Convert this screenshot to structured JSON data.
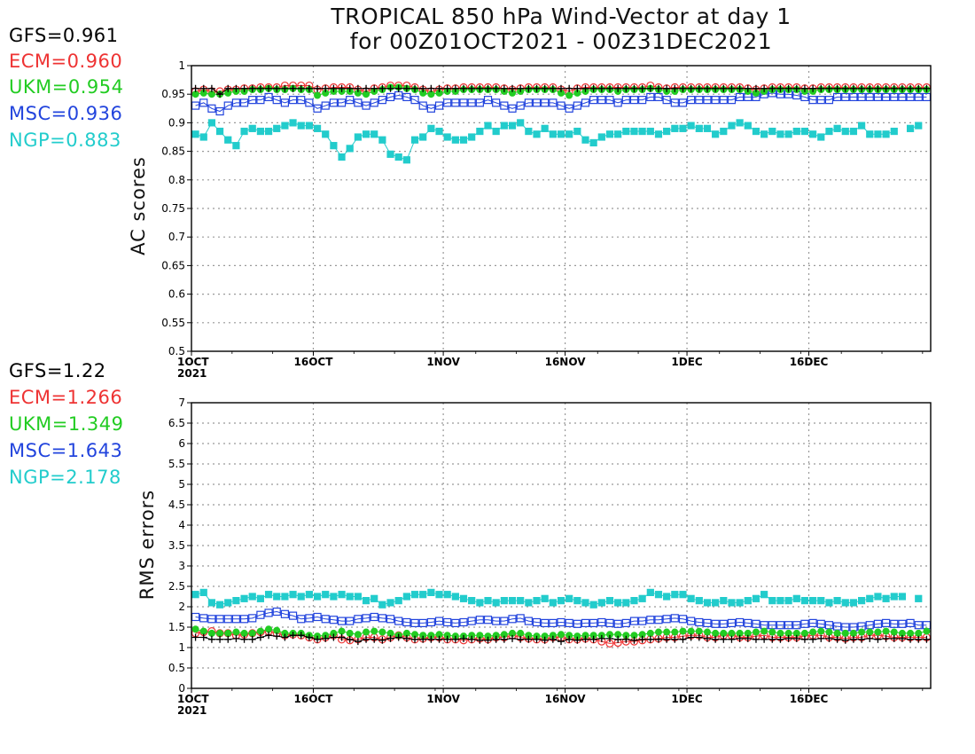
{
  "chart_data": [
    {
      "type": "line",
      "title": "TROPICAL 850 hPa Wind-Vector at day 1",
      "subtitle": "for 00Z01OCT2021 - 00Z31DEC2021",
      "ylabel": "AC scores",
      "ylim": [
        0.5,
        1.0
      ],
      "yticks": [
        "0.5",
        "0.55",
        "0.6",
        "0.65",
        "0.7",
        "0.75",
        "0.8",
        "0.85",
        "0.9",
        "0.95",
        "1"
      ],
      "xticks": [
        "1OCT",
        "16OCT",
        "1NOV",
        "16NOV",
        "1DEC",
        "16DEC"
      ],
      "xtick_year": "2021",
      "grid": true,
      "series": [
        {
          "name": "GFS",
          "summary": "GFS=0.961",
          "color": "#000000",
          "marker": "plus",
          "values": [
            0.96,
            0.96,
            0.96,
            0.95,
            0.96,
            0.96,
            0.96,
            0.96,
            0.96,
            0.96,
            0.96,
            0.96,
            0.96,
            0.96,
            0.96,
            0.96,
            0.96,
            0.96,
            0.96,
            0.96,
            0.96,
            0.96,
            0.96,
            0.96,
            0.96,
            0.96,
            0.96,
            0.96,
            0.96,
            0.96,
            0.96,
            0.96,
            0.96,
            0.96,
            0.96,
            0.96,
            0.96,
            0.96,
            0.96,
            0.96,
            0.96,
            0.96,
            0.96,
            0.96,
            0.96,
            0.96,
            0.96,
            0.96,
            0.96,
            0.96,
            0.96,
            0.96,
            0.96,
            0.96,
            0.96,
            0.96,
            0.96,
            0.96,
            0.96,
            0.96,
            0.96,
            0.96,
            0.96,
            0.96,
            0.96,
            0.96,
            0.96,
            0.96,
            0.96,
            0.96,
            0.96,
            0.96,
            0.96,
            0.96,
            0.96,
            0.96,
            0.96,
            0.96,
            0.96,
            0.96,
            0.96,
            0.96,
            0.96,
            0.96,
            0.96,
            0.96,
            0.96,
            0.96,
            0.96,
            0.96,
            0.96
          ]
        },
        {
          "name": "ECM",
          "summary": "ECM=0.960",
          "color": "#ee3333",
          "marker": "open-circle",
          "values": [
            0.955,
            0.958,
            0.955,
            0.955,
            0.958,
            0.958,
            0.96,
            0.96,
            0.962,
            0.962,
            0.962,
            0.965,
            0.965,
            0.965,
            0.965,
            0.958,
            0.96,
            0.962,
            0.962,
            0.962,
            0.958,
            0.955,
            0.96,
            0.962,
            0.965,
            0.965,
            0.965,
            0.962,
            0.958,
            0.955,
            0.958,
            0.96,
            0.96,
            0.962,
            0.962,
            0.962,
            0.962,
            0.962,
            0.96,
            0.958,
            0.96,
            0.962,
            0.962,
            0.962,
            0.962,
            0.958,
            0.955,
            0.96,
            0.962,
            0.962,
            0.962,
            0.962,
            0.962,
            0.962,
            0.962,
            0.962,
            0.965,
            0.962,
            0.96,
            0.962,
            0.962,
            0.962,
            0.962,
            0.962,
            0.962,
            0.962,
            0.962,
            0.962,
            0.96,
            0.958,
            0.96,
            0.962,
            0.962,
            0.962,
            0.962,
            0.96,
            0.96,
            0.962,
            0.962,
            0.962,
            0.962,
            0.962,
            0.962,
            0.962,
            0.962,
            0.962,
            0.962,
            0.962,
            0.962,
            0.962,
            0.962
          ]
        },
        {
          "name": "UKM",
          "summary": "UKM=0.954",
          "color": "#22cc22",
          "marker": "filled-circle",
          "values": [
            0.95,
            0.952,
            0.95,
            0.95,
            0.952,
            0.955,
            0.955,
            0.958,
            0.958,
            0.96,
            0.958,
            0.958,
            0.96,
            0.958,
            0.958,
            0.948,
            0.952,
            0.955,
            0.955,
            0.955,
            0.952,
            0.95,
            0.955,
            0.958,
            0.962,
            0.962,
            0.96,
            0.958,
            0.952,
            0.95,
            0.952,
            0.955,
            0.955,
            0.958,
            0.958,
            0.958,
            0.958,
            0.958,
            0.955,
            0.952,
            0.955,
            0.958,
            0.958,
            0.958,
            0.958,
            0.952,
            0.948,
            0.952,
            0.955,
            0.958,
            0.958,
            0.958,
            0.955,
            0.958,
            0.958,
            0.958,
            0.96,
            0.958,
            0.955,
            0.955,
            0.958,
            0.958,
            0.958,
            0.958,
            0.958,
            0.958,
            0.958,
            0.958,
            0.955,
            0.952,
            0.955,
            0.958,
            0.958,
            0.958,
            0.958,
            0.955,
            0.955,
            0.958,
            0.958,
            0.958,
            0.958,
            0.958,
            0.958,
            0.958,
            0.958,
            0.958,
            0.958,
            0.958,
            0.958,
            0.958,
            0.958
          ]
        },
        {
          "name": "MSC",
          "summary": "MSC=0.936",
          "color": "#2244dd",
          "marker": "open-square",
          "values": [
            0.93,
            0.935,
            0.925,
            0.92,
            0.93,
            0.935,
            0.935,
            0.94,
            0.94,
            0.945,
            0.94,
            0.935,
            0.94,
            0.94,
            0.935,
            0.925,
            0.93,
            0.935,
            0.935,
            0.94,
            0.935,
            0.93,
            0.935,
            0.94,
            0.945,
            0.948,
            0.945,
            0.94,
            0.93,
            0.925,
            0.93,
            0.935,
            0.935,
            0.935,
            0.935,
            0.935,
            0.94,
            0.935,
            0.93,
            0.925,
            0.93,
            0.935,
            0.935,
            0.935,
            0.935,
            0.93,
            0.925,
            0.93,
            0.935,
            0.94,
            0.94,
            0.94,
            0.935,
            0.94,
            0.94,
            0.94,
            0.945,
            0.945,
            0.94,
            0.935,
            0.935,
            0.94,
            0.94,
            0.94,
            0.94,
            0.94,
            0.94,
            0.945,
            0.945,
            0.945,
            0.95,
            0.952,
            0.95,
            0.95,
            0.948,
            0.945,
            0.94,
            0.94,
            0.94,
            0.945,
            0.945,
            0.945,
            0.945,
            0.945,
            0.945,
            0.945,
            0.945,
            0.945,
            0.945,
            0.945,
            0.945
          ]
        },
        {
          "name": "NGP",
          "summary": "NGP=0.883",
          "color": "#22cccc",
          "marker": "filled-square",
          "values": [
            0.88,
            0.875,
            0.9,
            0.885,
            0.87,
            0.86,
            0.885,
            0.89,
            0.885,
            0.885,
            0.89,
            0.895,
            0.9,
            0.895,
            0.895,
            0.89,
            0.88,
            0.86,
            0.84,
            0.855,
            0.875,
            0.88,
            0.88,
            0.87,
            0.845,
            0.84,
            0.835,
            0.87,
            0.875,
            0.89,
            0.885,
            0.875,
            0.87,
            0.87,
            0.875,
            0.885,
            0.895,
            0.885,
            0.895,
            0.895,
            0.9,
            0.885,
            0.88,
            0.89,
            0.88,
            0.88,
            0.88,
            0.885,
            0.87,
            0.865,
            0.875,
            0.88,
            0.88,
            0.885,
            0.885,
            0.885,
            0.885,
            0.88,
            0.885,
            0.89,
            0.89,
            0.895,
            0.89,
            0.89,
            0.88,
            0.885,
            0.895,
            0.9,
            0.895,
            0.885,
            0.88,
            0.885,
            0.88,
            0.88,
            0.885,
            0.885,
            0.88,
            0.875,
            0.885,
            0.89,
            0.885,
            0.885,
            0.895,
            0.88,
            0.88,
            0.88,
            0.885,
            null,
            0.89,
            0.895,
            null
          ]
        }
      ]
    },
    {
      "type": "line",
      "ylabel": "RMS errors",
      "ylim": [
        0,
        7
      ],
      "yticks": [
        "0",
        "0.5",
        "1",
        "1.5",
        "2",
        "2.5",
        "3",
        "3.5",
        "4",
        "4.5",
        "5",
        "5.5",
        "6",
        "6.5",
        "7"
      ],
      "xticks": [
        "1OCT",
        "16OCT",
        "1NOV",
        "16NOV",
        "1DEC",
        "16DEC"
      ],
      "xtick_year": "2021",
      "grid": true,
      "series": [
        {
          "name": "GFS",
          "summary": "GFS=1.22",
          "color": "#000000",
          "marker": "plus",
          "values": [
            1.25,
            1.25,
            1.2,
            1.2,
            1.2,
            1.22,
            1.2,
            1.2,
            1.25,
            1.3,
            1.28,
            1.25,
            1.3,
            1.3,
            1.25,
            1.2,
            1.22,
            1.25,
            1.25,
            1.2,
            1.15,
            1.2,
            1.2,
            1.18,
            1.22,
            1.25,
            1.22,
            1.2,
            1.2,
            1.2,
            1.2,
            1.2,
            1.2,
            1.22,
            1.2,
            1.18,
            1.18,
            1.2,
            1.2,
            1.22,
            1.2,
            1.2,
            1.2,
            1.18,
            1.2,
            1.15,
            1.2,
            1.18,
            1.2,
            1.2,
            1.22,
            1.22,
            1.2,
            1.2,
            1.18,
            1.2,
            1.2,
            1.2,
            1.2,
            1.2,
            1.2,
            1.25,
            1.25,
            1.22,
            1.2,
            1.2,
            1.2,
            1.22,
            1.22,
            1.2,
            1.2,
            1.2,
            1.2,
            1.22,
            1.22,
            1.2,
            1.2,
            1.22,
            1.22,
            1.2,
            1.18,
            1.2,
            1.2,
            1.22,
            1.2,
            1.22,
            1.22,
            1.22,
            1.2,
            1.2,
            1.2
          ]
        },
        {
          "name": "ECM",
          "summary": "ECM=1.266",
          "color": "#ee3333",
          "marker": "open-circle",
          "values": [
            1.35,
            1.38,
            1.4,
            1.35,
            1.35,
            1.3,
            1.32,
            1.35,
            1.38,
            1.4,
            1.35,
            1.3,
            1.32,
            1.3,
            1.25,
            1.2,
            1.25,
            1.3,
            1.2,
            1.18,
            1.2,
            1.25,
            1.25,
            1.2,
            1.25,
            1.3,
            1.25,
            1.2,
            1.22,
            1.25,
            1.25,
            1.2,
            1.2,
            1.18,
            1.2,
            1.22,
            1.2,
            1.25,
            1.25,
            1.3,
            1.25,
            1.22,
            1.2,
            1.2,
            1.25,
            1.25,
            1.2,
            1.2,
            1.22,
            1.2,
            1.15,
            1.1,
            1.12,
            1.15,
            1.15,
            1.18,
            1.2,
            1.22,
            1.25,
            1.25,
            1.28,
            1.3,
            1.3,
            1.25,
            1.25,
            1.3,
            1.3,
            1.25,
            1.25,
            1.28,
            1.3,
            1.25,
            1.25,
            1.25,
            1.25,
            1.28,
            1.3,
            1.3,
            1.25,
            1.25,
            1.22,
            1.25,
            1.25,
            1.3,
            1.3,
            1.28,
            1.25,
            1.25,
            1.25,
            1.25,
            1.25
          ]
        },
        {
          "name": "UKM",
          "summary": "UKM=1.349",
          "color": "#22cc22",
          "marker": "filled-circle",
          "values": [
            1.45,
            1.4,
            1.35,
            1.35,
            1.35,
            1.38,
            1.35,
            1.35,
            1.4,
            1.45,
            1.42,
            1.35,
            1.35,
            1.35,
            1.3,
            1.28,
            1.3,
            1.35,
            1.4,
            1.35,
            1.32,
            1.38,
            1.4,
            1.38,
            1.35,
            1.3,
            1.35,
            1.32,
            1.3,
            1.3,
            1.32,
            1.3,
            1.28,
            1.28,
            1.3,
            1.3,
            1.28,
            1.3,
            1.32,
            1.35,
            1.35,
            1.3,
            1.28,
            1.28,
            1.3,
            1.32,
            1.3,
            1.28,
            1.3,
            1.3,
            1.3,
            1.32,
            1.32,
            1.3,
            1.3,
            1.32,
            1.35,
            1.38,
            1.38,
            1.38,
            1.4,
            1.4,
            1.4,
            1.38,
            1.35,
            1.35,
            1.35,
            1.35,
            1.35,
            1.38,
            1.4,
            1.38,
            1.35,
            1.35,
            1.35,
            1.35,
            1.38,
            1.4,
            1.38,
            1.35,
            1.35,
            1.35,
            1.38,
            1.38,
            1.38,
            1.4,
            1.38,
            1.35,
            1.35,
            1.35,
            1.4
          ]
        },
        {
          "name": "MSC",
          "summary": "MSC=1.643",
          "color": "#2244dd",
          "marker": "open-square",
          "values": [
            1.75,
            1.72,
            1.7,
            1.7,
            1.7,
            1.7,
            1.7,
            1.72,
            1.8,
            1.85,
            1.88,
            1.82,
            1.78,
            1.7,
            1.72,
            1.75,
            1.7,
            1.68,
            1.65,
            1.65,
            1.7,
            1.72,
            1.75,
            1.72,
            1.7,
            1.65,
            1.62,
            1.6,
            1.6,
            1.62,
            1.65,
            1.62,
            1.6,
            1.62,
            1.65,
            1.68,
            1.68,
            1.65,
            1.65,
            1.7,
            1.72,
            1.65,
            1.62,
            1.6,
            1.6,
            1.62,
            1.6,
            1.58,
            1.6,
            1.6,
            1.62,
            1.6,
            1.58,
            1.6,
            1.65,
            1.65,
            1.68,
            1.68,
            1.7,
            1.72,
            1.7,
            1.65,
            1.62,
            1.6,
            1.58,
            1.58,
            1.6,
            1.62,
            1.6,
            1.58,
            1.55,
            1.55,
            1.55,
            1.55,
            1.55,
            1.58,
            1.6,
            1.58,
            1.55,
            1.52,
            1.5,
            1.5,
            1.52,
            1.55,
            1.58,
            1.6,
            1.58,
            1.58,
            1.6,
            1.55,
            1.55
          ]
        },
        {
          "name": "NGP",
          "summary": "NGP=2.178",
          "color": "#22cccc",
          "marker": "filled-square",
          "values": [
            2.3,
            2.35,
            2.1,
            2.05,
            2.1,
            2.15,
            2.2,
            2.25,
            2.2,
            2.3,
            2.25,
            2.25,
            2.3,
            2.25,
            2.3,
            2.25,
            2.3,
            2.25,
            2.3,
            2.25,
            2.25,
            2.15,
            2.2,
            2.05,
            2.1,
            2.15,
            2.25,
            2.3,
            2.3,
            2.35,
            2.3,
            2.3,
            2.25,
            2.2,
            2.15,
            2.1,
            2.15,
            2.1,
            2.15,
            2.15,
            2.15,
            2.1,
            2.15,
            2.2,
            2.1,
            2.15,
            2.2,
            2.15,
            2.1,
            2.05,
            2.1,
            2.15,
            2.1,
            2.1,
            2.15,
            2.2,
            2.35,
            2.3,
            2.25,
            2.3,
            2.3,
            2.2,
            2.15,
            2.1,
            2.1,
            2.15,
            2.1,
            2.1,
            2.15,
            2.2,
            2.3,
            2.15,
            2.15,
            2.15,
            2.2,
            2.15,
            2.15,
            2.15,
            2.1,
            2.15,
            2.1,
            2.1,
            2.15,
            2.2,
            2.25,
            2.2,
            2.25,
            2.25,
            null,
            2.2,
            null
          ]
        }
      ]
    }
  ]
}
